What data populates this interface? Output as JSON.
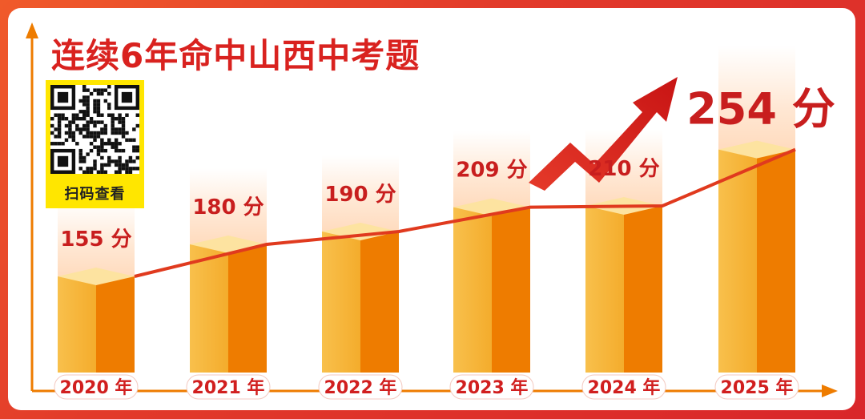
{
  "title": "连续6年命中山西中考题",
  "qr": {
    "caption": "扫码查看"
  },
  "colors": {
    "accent_red": "#d9221f",
    "bar_front": "#f6b73c",
    "bar_side": "#ee7c00",
    "bar_top": "#fde3a0",
    "trend_line": "#e03a1e",
    "background_frame": "#e8322b"
  },
  "chart_data": {
    "type": "bar",
    "title": "连续6年命中山西中考题",
    "categories": [
      "2020 年",
      "2021 年",
      "2022 年",
      "2023 年",
      "2024 年",
      "2025 年"
    ],
    "values": [
      155,
      180,
      190,
      209,
      210,
      254
    ],
    "data_labels": [
      "155 分",
      "180 分",
      "190 分",
      "209 分",
      "210 分",
      "254 分"
    ],
    "unit": "分",
    "trend_line": true,
    "trend_arrow": true,
    "grid": false
  }
}
